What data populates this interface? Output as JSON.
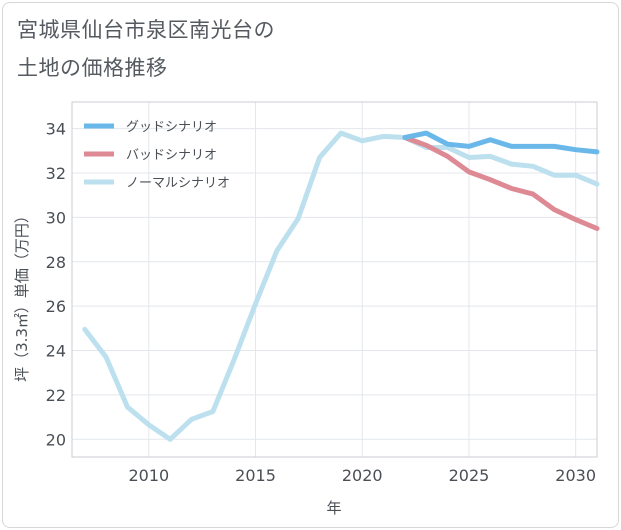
{
  "title_line1": "宮城県仙台市泉区南光台の",
  "title_line2": "土地の価格推移",
  "chart_data": {
    "type": "line",
    "xlabel": "年",
    "ylabel": "坪（3.3㎡）単価（万円）",
    "xlim": [
      2006.4,
      2031
    ],
    "ylim": [
      19.2,
      35.2
    ],
    "xticks": [
      2010,
      2015,
      2020,
      2025,
      2030
    ],
    "yticks": [
      20,
      22,
      24,
      26,
      28,
      30,
      32,
      34
    ],
    "grid": true,
    "legend_position": "top-left",
    "series": [
      {
        "name": "グッドシナリオ",
        "color": "#6ab8ea",
        "x": [
          2022,
          2023,
          2024,
          2025,
          2026,
          2027,
          2028,
          2029,
          2030,
          2031
        ],
        "y": [
          33.6,
          33.8,
          33.3,
          33.2,
          33.5,
          33.2,
          33.2,
          33.2,
          33.05,
          32.95
        ]
      },
      {
        "name": "バッドシナリオ",
        "color": "#de8a95",
        "x": [
          2022,
          2023,
          2024,
          2025,
          2026,
          2027,
          2028,
          2029,
          2030,
          2031
        ],
        "y": [
          33.6,
          33.25,
          32.75,
          32.05,
          31.7,
          31.3,
          31.05,
          30.35,
          29.9,
          29.5
        ]
      },
      {
        "name": "ノーマルシナリオ",
        "color": "#bde0ef",
        "x": [
          2007,
          2008,
          2009,
          2010,
          2011,
          2012,
          2013,
          2014,
          2015,
          2016,
          2017,
          2018,
          2019,
          2020,
          2021,
          2022,
          2023,
          2024,
          2025,
          2026,
          2027,
          2028,
          2029,
          2030,
          2031
        ],
        "y": [
          24.95,
          23.7,
          21.45,
          20.65,
          20.0,
          20.9,
          21.25,
          23.6,
          26.1,
          28.5,
          29.95,
          32.7,
          33.8,
          33.45,
          33.65,
          33.6,
          33.15,
          33.15,
          32.7,
          32.75,
          32.4,
          32.3,
          31.9,
          31.9,
          31.5
        ]
      }
    ]
  }
}
